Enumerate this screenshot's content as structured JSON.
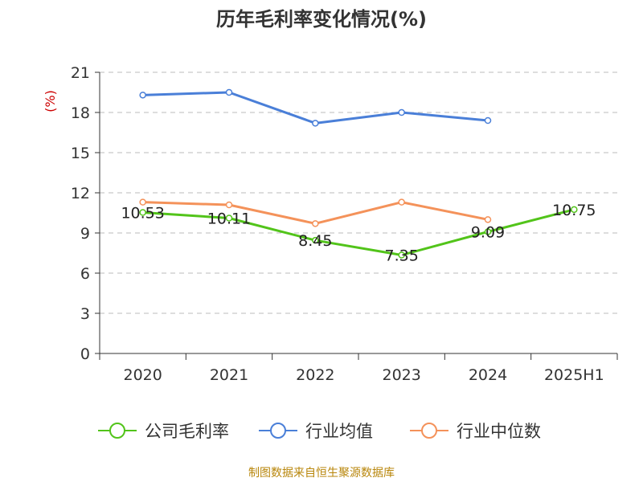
{
  "title": "历年毛利率变化情况(%)",
  "source": "制图数据来自恒生聚源数据库",
  "chart_data": {
    "type": "line",
    "title": "历年毛利率变化情况(%)",
    "ylabel": "(%)",
    "ylim": [
      0,
      21
    ],
    "yticks": [
      0,
      3,
      6,
      9,
      12,
      15,
      18,
      21
    ],
    "categories": [
      "2020",
      "2021",
      "2022",
      "2023",
      "2024",
      "2025H1"
    ],
    "grid": true,
    "legend": "bottom",
    "series": [
      {
        "name": "公司毛利率",
        "color": "#52c41a",
        "values": [
          10.53,
          10.11,
          8.45,
          7.35,
          9.09,
          10.75
        ],
        "labels": [
          "10.53",
          "10.11",
          "8.45",
          "7.35",
          "9.09",
          "10.75"
        ]
      },
      {
        "name": "行业均值",
        "color": "#4a7fd8",
        "values": [
          19.3,
          19.5,
          17.2,
          18.0,
          17.4,
          null
        ]
      },
      {
        "name": "行业中位数",
        "color": "#f4925a",
        "values": [
          11.3,
          11.1,
          9.7,
          11.3,
          10.0,
          null
        ]
      }
    ]
  }
}
